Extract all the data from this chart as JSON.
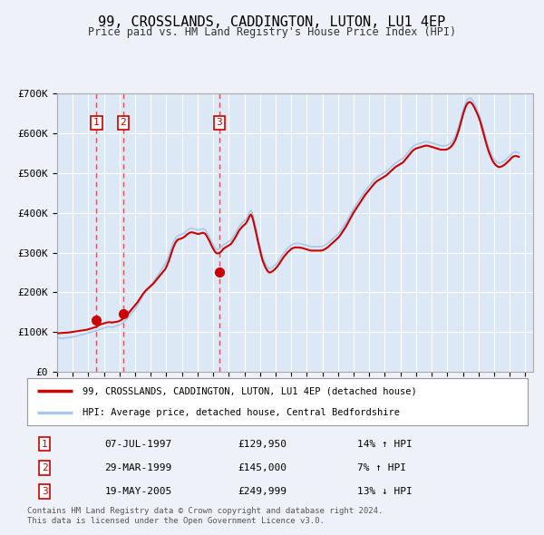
{
  "title": "99, CROSSLANDS, CADDINGTON, LUTON, LU1 4EP",
  "subtitle": "Price paid vs. HM Land Registry's House Price Index (HPI)",
  "bg_color": "#eef2f8",
  "plot_bg_color": "#dce8f5",
  "ylim": [
    0,
    700000
  ],
  "yticks": [
    0,
    100000,
    200000,
    300000,
    400000,
    500000,
    600000,
    700000
  ],
  "ytick_labels": [
    "£0",
    "£100K",
    "£200K",
    "£300K",
    "£400K",
    "£500K",
    "£600K",
    "£700K"
  ],
  "xlim_start": 1995.0,
  "xlim_end": 2025.5,
  "sales": [
    {
      "num": 1,
      "date": "07-JUL-1997",
      "year": 1997.52,
      "price": 129950,
      "hpi_pct": "14% ↑ HPI"
    },
    {
      "num": 2,
      "date": "29-MAR-1999",
      "year": 1999.24,
      "price": 145000,
      "hpi_pct": "7% ↑ HPI"
    },
    {
      "num": 3,
      "date": "19-MAY-2005",
      "year": 2005.38,
      "price": 249999,
      "hpi_pct": "13% ↓ HPI"
    }
  ],
  "legend_line1": "99, CROSSLANDS, CADDINGTON, LUTON, LU1 4EP (detached house)",
  "legend_line2": "HPI: Average price, detached house, Central Bedfordshire",
  "footer1": "Contains HM Land Registry data © Crown copyright and database right 2024.",
  "footer2": "This data is licensed under the Open Government Licence v3.0."
}
